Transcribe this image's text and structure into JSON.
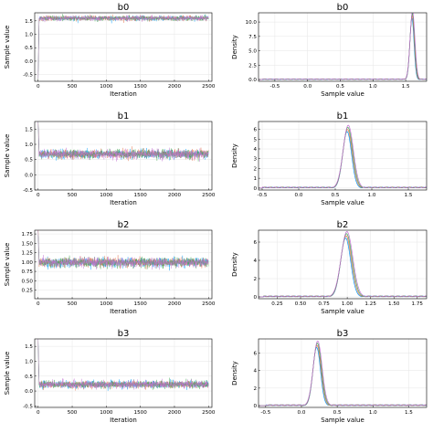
{
  "chart_data": [
    {
      "id": "trace-b0",
      "type": "line",
      "title": "b0",
      "xlabel": "Iteration",
      "ylabel": "Sample value",
      "xlim": [
        -50,
        2550
      ],
      "ylim": [
        -0.75,
        1.8
      ],
      "xticks": [
        0,
        500,
        1000,
        1500,
        2000,
        2500
      ],
      "yticks": [
        -0.5,
        0.0,
        0.5,
        1.0,
        1.5
      ],
      "ytick_labels": [
        "-0.5",
        "0.0",
        "0.5",
        "1.0",
        "1.5"
      ],
      "chains": 4,
      "start_value": -0.7,
      "burn_in_end": 15,
      "mean": 1.6,
      "spread": 0.045,
      "iterations": 2500
    },
    {
      "id": "density-b0",
      "type": "line",
      "title": "b0",
      "xlabel": "Sample value",
      "ylabel": "Density",
      "xlim": [
        -0.75,
        1.82
      ],
      "ylim": [
        -0.3,
        11.6
      ],
      "xticks": [
        -0.5,
        0.0,
        0.5,
        1.0,
        1.5
      ],
      "xtick_labels": [
        "-0.5",
        "0.0",
        "0.5",
        "1.0",
        "1.5"
      ],
      "yticks": [
        0.0,
        2.5,
        5.0,
        7.5,
        10.0
      ],
      "ytick_labels": [
        "0.0",
        "2.5",
        "5.0",
        "7.5",
        "10.0"
      ],
      "mean": 1.6,
      "sd": 0.034,
      "peak": 11.3,
      "tail_from": -0.7
    },
    {
      "id": "trace-b1",
      "type": "line",
      "title": "b1",
      "xlabel": "Iteration",
      "ylabel": "Sample value",
      "xlim": [
        -50,
        2550
      ],
      "ylim": [
        -0.5,
        1.75
      ],
      "xticks": [
        0,
        500,
        1000,
        1500,
        2000,
        2500
      ],
      "yticks": [
        -0.5,
        0.0,
        0.5,
        1.0,
        1.5
      ],
      "ytick_labels": [
        "-0.5",
        "0.0",
        "0.5",
        "1.0",
        "1.5"
      ],
      "chains": 4,
      "start_value": 1.7,
      "burn_in_end": 15,
      "mean": 0.68,
      "spread": 0.07,
      "iterations": 2500
    },
    {
      "id": "density-b1",
      "type": "line",
      "title": "b1",
      "xlabel": "Sample value",
      "ylabel": "Density",
      "xlim": [
        -0.55,
        1.75
      ],
      "ylim": [
        -0.2,
        6.8
      ],
      "xticks": [
        -0.5,
        0.0,
        0.5,
        1.0,
        1.5
      ],
      "xtick_labels": [
        "-0.5",
        "0.0",
        "0.5",
        "1.0",
        "1.5"
      ],
      "yticks": [
        0,
        1,
        2,
        3,
        4,
        5,
        6
      ],
      "ytick_labels": [
        "0",
        "1",
        "2",
        "3",
        "4",
        "5",
        "6"
      ],
      "mean": 0.67,
      "sd": 0.065,
      "peak": 6.1,
      "tail_from": -0.5
    },
    {
      "id": "trace-b2",
      "type": "line",
      "title": "b2",
      "xlabel": "Iteration",
      "ylabel": "Sample value",
      "xlim": [
        -50,
        2550
      ],
      "ylim": [
        0.02,
        1.85
      ],
      "xticks": [
        0,
        500,
        1000,
        1500,
        2000,
        2500
      ],
      "yticks": [
        0.25,
        0.5,
        0.75,
        1.0,
        1.25,
        1.5,
        1.75
      ],
      "ytick_labels": [
        "0.25",
        "0.50",
        "0.75",
        "1.00",
        "1.25",
        "1.50",
        "1.75"
      ],
      "chains": 4,
      "start_value": 1.8,
      "burn_in_end": 15,
      "mean": 0.99,
      "spread": 0.06,
      "iterations": 2500
    },
    {
      "id": "density-b2",
      "type": "line",
      "title": "b2",
      "xlabel": "Sample value",
      "ylabel": "Density",
      "xlim": [
        0.05,
        1.85
      ],
      "ylim": [
        -0.2,
        7.3
      ],
      "xticks": [
        0.25,
        0.5,
        0.75,
        1.0,
        1.25,
        1.5,
        1.75
      ],
      "xtick_labels": [
        "0.25",
        "0.50",
        "0.75",
        "1.00",
        "1.25",
        "1.50",
        "1.75"
      ],
      "yticks": [
        0,
        2,
        4,
        6
      ],
      "ytick_labels": [
        "0",
        "2",
        "4",
        "6"
      ],
      "mean": 0.99,
      "sd": 0.058,
      "peak": 6.8,
      "tail_from": 0.1
    },
    {
      "id": "trace-b3",
      "type": "line",
      "title": "b3",
      "xlabel": "Iteration",
      "ylabel": "Sample value",
      "xlim": [
        -50,
        2550
      ],
      "ylim": [
        -0.55,
        1.75
      ],
      "xticks": [
        0,
        500,
        1000,
        1500,
        2000,
        2500
      ],
      "yticks": [
        -0.5,
        0.0,
        0.5,
        1.0,
        1.5
      ],
      "ytick_labels": [
        "-0.5",
        "0.0",
        "0.5",
        "1.0",
        "1.5"
      ],
      "chains": 4,
      "start_value": 1.7,
      "burn_in_end": 15,
      "mean": 0.22,
      "spread": 0.06,
      "iterations": 2500
    },
    {
      "id": "density-b3",
      "type": "line",
      "title": "b3",
      "xlabel": "Sample value",
      "ylabel": "Density",
      "xlim": [
        -0.6,
        1.75
      ],
      "ylim": [
        -0.2,
        7.6
      ],
      "xticks": [
        -0.5,
        0.0,
        0.5,
        1.0,
        1.5
      ],
      "xtick_labels": [
        "-0.5",
        "0.0",
        "0.5",
        "1.0",
        "1.5"
      ],
      "yticks": [
        0,
        2,
        4,
        6
      ],
      "ytick_labels": [
        "0",
        "2",
        "4",
        "6"
      ],
      "mean": 0.22,
      "sd": 0.057,
      "peak": 7.0,
      "tail_from": -0.5
    }
  ],
  "chain_colors": [
    "#009AFA",
    "#E36F47",
    "#3EA44E",
    "#C271D2"
  ],
  "grid": true,
  "legend": "none"
}
